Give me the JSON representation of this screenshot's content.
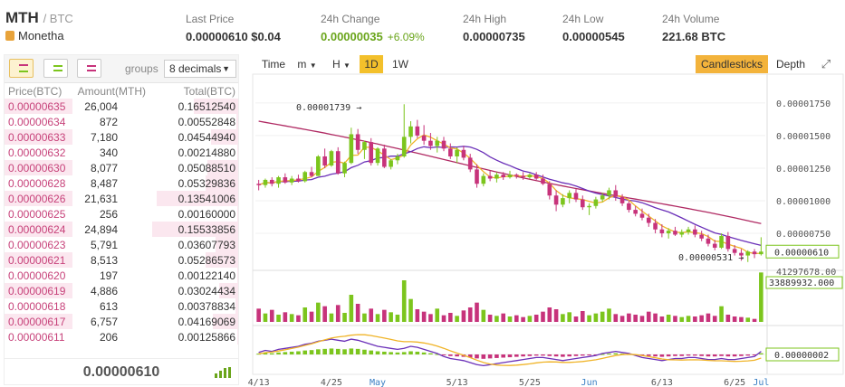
{
  "header": {
    "symbol": "MTH",
    "quote": "/ BTC",
    "coin_name": "Monetha",
    "stats": [
      {
        "label": "Last Price",
        "value": "0.00000610 $0.04",
        "change": ""
      },
      {
        "label": "24h Change",
        "value": "0.00000035",
        "change": "+6.09%"
      },
      {
        "label": "24h High",
        "value": "0.00000735",
        "change": ""
      },
      {
        "label": "24h Low",
        "value": "0.00000545",
        "change": ""
      },
      {
        "label": "24h Volume",
        "value": "221.68 BTC",
        "change": ""
      }
    ]
  },
  "orderbook": {
    "groups_label": "groups",
    "decimals": "8 decimals",
    "columns": [
      "Price(BTC)",
      "Amount(MTH)",
      "Total(BTC)"
    ],
    "rows": [
      {
        "price": "0.00000635",
        "amount": "26,004",
        "total": "0.16512540",
        "depth": 0.52
      },
      {
        "price": "0.00000634",
        "amount": "872",
        "total": "0.00552848",
        "depth": 0.02
      },
      {
        "price": "0.00000633",
        "amount": "7,180",
        "total": "0.04544940",
        "depth": 0.32
      },
      {
        "price": "0.00000632",
        "amount": "340",
        "total": "0.00214880",
        "depth": 0.01
      },
      {
        "price": "0.00000630",
        "amount": "8,077",
        "total": "0.05088510",
        "depth": 0.36
      },
      {
        "price": "0.00000628",
        "amount": "8,487",
        "total": "0.05329836",
        "depth": 0.38
      },
      {
        "price": "0.00000626",
        "amount": "21,631",
        "total": "0.13541006",
        "depth": 0.95
      },
      {
        "price": "0.00000625",
        "amount": "256",
        "total": "0.00160000",
        "depth": 0.01
      },
      {
        "price": "0.00000624",
        "amount": "24,894",
        "total": "0.15533856",
        "depth": 1.0
      },
      {
        "price": "0.00000623",
        "amount": "5,791",
        "total": "0.03607793",
        "depth": 0.26
      },
      {
        "price": "0.00000621",
        "amount": "8,513",
        "total": "0.05286573",
        "depth": 0.38
      },
      {
        "price": "0.00000620",
        "amount": "197",
        "total": "0.00122140",
        "depth": 0.01
      },
      {
        "price": "0.00000619",
        "amount": "4,886",
        "total": "0.03024434",
        "depth": 0.22
      },
      {
        "price": "0.00000618",
        "amount": "613",
        "total": "0.00378834",
        "depth": 0.03
      },
      {
        "price": "0.00000617",
        "amount": "6,757",
        "total": "0.04169069",
        "depth": 0.3
      },
      {
        "price": "0.00000611",
        "amount": "206",
        "total": "0.00125866",
        "depth": 0.01
      }
    ],
    "last_price": "0.00000610"
  },
  "toolbar": {
    "time_label": "Time",
    "minute_label": "m",
    "hour_label": "H",
    "day_label": "1D",
    "week_label": "1W",
    "candles_label": "Candlesticks",
    "depth_label": "Depth"
  },
  "colors": {
    "up": "#7cc51d",
    "down": "#c7337b",
    "ma_fast": "#f0b428",
    "ma_slow": "#6a2fb8",
    "ma_long": "#b02a63"
  },
  "chart_data": {
    "type": "candlestick",
    "x_ticks": [
      "4/13",
      "4/25",
      "May",
      "5/13",
      "5/25",
      "Jun",
      "6/13",
      "6/25",
      "Jul"
    ],
    "price_ticks": [
      "0.00001750",
      "0.00001500",
      "0.00001250",
      "0.00001000",
      "0.00000750"
    ],
    "price_range": [
      4.8e-06,
      1.95e-05
    ],
    "current_price_label": "0.00000610",
    "high_annotation": "0.00001739",
    "low_annotation": "0.00000531",
    "volume_max_label": "41297678.00",
    "volume_current_label": "33889932.000",
    "macd_current_label": "0.00000002",
    "candles": [
      [
        11.3,
        11.6,
        10.8,
        11.2
      ],
      [
        11.2,
        11.7,
        11.0,
        11.6
      ],
      [
        11.6,
        11.8,
        11.1,
        11.3
      ],
      [
        11.3,
        11.9,
        11.0,
        11.8
      ],
      [
        11.8,
        12.1,
        11.3,
        11.4
      ],
      [
        11.4,
        11.9,
        11.2,
        11.7
      ],
      [
        11.7,
        12.0,
        11.4,
        11.5
      ],
      [
        11.5,
        12.3,
        11.4,
        12.2
      ],
      [
        12.2,
        12.6,
        11.8,
        11.9
      ],
      [
        11.9,
        13.5,
        11.9,
        13.4
      ],
      [
        13.4,
        14.0,
        12.5,
        12.7
      ],
      [
        12.7,
        13.9,
        12.6,
        13.8
      ],
      [
        13.8,
        14.1,
        12.0,
        12.1
      ],
      [
        12.1,
        13.0,
        11.8,
        12.9
      ],
      [
        12.9,
        15.6,
        12.8,
        15.1
      ],
      [
        15.1,
        15.5,
        13.6,
        13.9
      ],
      [
        13.9,
        14.6,
        13.2,
        14.5
      ],
      [
        14.5,
        14.8,
        12.7,
        12.9
      ],
      [
        12.9,
        14.1,
        12.7,
        14.0
      ],
      [
        14.0,
        14.3,
        12.5,
        12.6
      ],
      [
        12.6,
        13.2,
        12.4,
        13.1
      ],
      [
        13.1,
        13.6,
        12.8,
        13.4
      ],
      [
        13.4,
        17.4,
        13.3,
        14.9
      ],
      [
        14.9,
        16.1,
        14.4,
        15.7
      ],
      [
        15.7,
        16.2,
        14.8,
        15.0
      ],
      [
        15.0,
        15.8,
        14.3,
        14.6
      ],
      [
        14.6,
        15.2,
        13.9,
        14.2
      ],
      [
        14.2,
        14.9,
        13.7,
        14.6
      ],
      [
        14.6,
        14.9,
        13.8,
        14.0
      ],
      [
        14.0,
        14.4,
        13.2,
        13.4
      ],
      [
        13.4,
        14.1,
        12.9,
        13.9
      ],
      [
        13.9,
        14.2,
        13.1,
        13.3
      ],
      [
        13.3,
        13.6,
        12.2,
        12.4
      ],
      [
        12.4,
        12.8,
        11.0,
        11.3
      ],
      [
        11.3,
        12.1,
        11.1,
        11.9
      ],
      [
        11.9,
        12.3,
        11.5,
        11.7
      ],
      [
        11.7,
        12.2,
        11.4,
        12.0
      ],
      [
        12.0,
        12.2,
        11.6,
        11.8
      ],
      [
        11.8,
        12.3,
        11.7,
        12.0
      ],
      [
        12.0,
        12.1,
        11.7,
        11.9
      ],
      [
        11.9,
        12.2,
        11.6,
        11.8
      ],
      [
        11.8,
        12.1,
        11.7,
        12.0
      ],
      [
        12.0,
        12.2,
        11.6,
        11.7
      ],
      [
        11.7,
        12.0,
        11.2,
        11.3
      ],
      [
        11.3,
        11.5,
        10.1,
        10.4
      ],
      [
        10.4,
        10.8,
        9.2,
        9.7
      ],
      [
        9.7,
        10.5,
        9.5,
        10.2
      ],
      [
        10.2,
        10.8,
        9.8,
        10.6
      ],
      [
        10.6,
        10.9,
        9.9,
        10.1
      ],
      [
        10.1,
        10.4,
        9.3,
        9.5
      ],
      [
        9.5,
        9.8,
        8.9,
        9.6
      ],
      [
        9.6,
        10.3,
        9.4,
        10.1
      ],
      [
        10.1,
        10.6,
        9.9,
        10.4
      ],
      [
        10.4,
        11.0,
        10.1,
        10.8
      ],
      [
        10.8,
        11.2,
        10.0,
        10.3
      ],
      [
        10.3,
        10.5,
        9.6,
        9.8
      ],
      [
        9.8,
        10.0,
        9.1,
        9.3
      ],
      [
        9.3,
        9.6,
        8.8,
        9.0
      ],
      [
        9.0,
        9.4,
        8.5,
        8.7
      ],
      [
        8.7,
        9.0,
        8.0,
        8.3
      ],
      [
        8.3,
        8.6,
        7.5,
        7.8
      ],
      [
        7.8,
        8.2,
        7.2,
        7.5
      ],
      [
        7.5,
        7.9,
        7.1,
        7.7
      ],
      [
        7.7,
        8.0,
        7.3,
        7.4
      ],
      [
        7.4,
        7.8,
        7.2,
        7.6
      ],
      [
        7.6,
        8.0,
        7.4,
        7.8
      ],
      [
        7.8,
        8.1,
        7.2,
        7.4
      ],
      [
        7.4,
        7.7,
        6.9,
        7.1
      ],
      [
        7.1,
        7.4,
        6.5,
        6.7
      ],
      [
        6.7,
        7.0,
        6.2,
        6.4
      ],
      [
        6.4,
        7.5,
        6.3,
        7.3
      ],
      [
        7.3,
        7.6,
        6.1,
        6.3
      ],
      [
        6.3,
        6.6,
        5.8,
        6.0
      ],
      [
        6.0,
        6.3,
        5.4,
        5.8
      ],
      [
        5.8,
        6.2,
        5.3,
        6.1
      ],
      [
        6.1,
        6.3,
        5.6,
        5.9
      ],
      [
        5.9,
        7.2,
        5.8,
        6.1
      ]
    ],
    "volumes": [
      2.2,
      1.4,
      2.0,
      1.2,
      1.6,
      1.3,
      1.1,
      2.4,
      1.7,
      3.2,
      2.6,
      1.4,
      2.8,
      1.5,
      4.5,
      3.0,
      1.4,
      2.2,
      1.3,
      2.0,
      1.6,
      1.2,
      6.9,
      3.8,
      2.1,
      1.7,
      1.3,
      2.2,
      1.1,
      1.5,
      1.0,
      1.9,
      2.4,
      3.2,
      2.0,
      1.2,
      1.0,
      1.4,
      0.9,
      1.1,
      0.8,
      1.0,
      1.2,
      1.7,
      2.4,
      2.1,
      1.3,
      1.6,
      0.9,
      1.8,
      1.1,
      1.4,
      1.7,
      2.2,
      1.3,
      1.0,
      1.4,
      1.2,
      1.0,
      1.7,
      1.4,
      0.9,
      1.2,
      1.0,
      0.8,
      1.0,
      0.9,
      1.1,
      1.4,
      1.0,
      2.6,
      1.2,
      0.9,
      0.8,
      0.7,
      0.5,
      8.2
    ],
    "macd_hist": [
      0.2,
      0.4,
      0.3,
      0.5,
      0.6,
      0.7,
      0.8,
      1.0,
      1.1,
      1.3,
      1.4,
      1.5,
      1.4,
      1.3,
      1.5,
      1.4,
      1.2,
      1.0,
      0.8,
      0.7,
      0.6,
      0.5,
      0.6,
      0.8,
      0.7,
      0.5,
      0.3,
      0.1,
      -0.2,
      -0.4,
      -0.5,
      -0.6,
      -0.8,
      -1.0,
      -1.1,
      -1.0,
      -0.9,
      -0.8,
      -0.7,
      -0.6,
      -0.5,
      -0.4,
      -0.3,
      -0.3,
      -0.4,
      -0.5,
      -0.6,
      -0.5,
      -0.4,
      -0.3,
      -0.2,
      -0.1,
      0.1,
      0.2,
      0.3,
      0.2,
      0.1,
      -0.1,
      -0.3,
      -0.4,
      -0.5,
      -0.6,
      -0.5,
      -0.4,
      -0.4,
      -0.3,
      -0.3,
      -0.4,
      -0.5,
      -0.5,
      -0.4,
      -0.5,
      -0.5,
      -0.4,
      -0.3,
      -0.2,
      0.3
    ]
  }
}
